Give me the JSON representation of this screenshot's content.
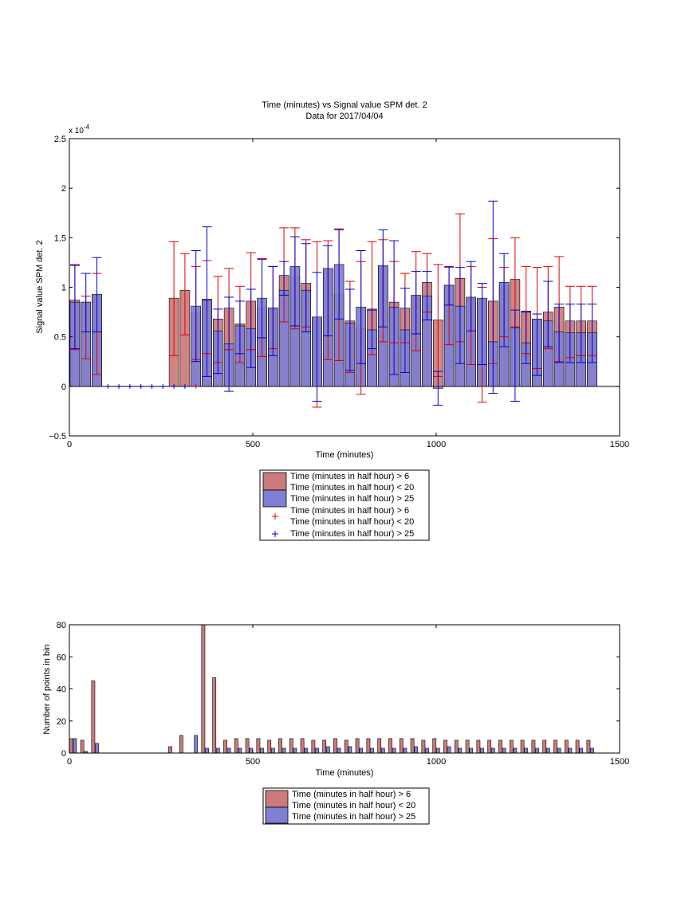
{
  "colors": {
    "red_bar": "#cc7a7a",
    "blue_bar": "#7f7fd4",
    "red_err": "#e00000",
    "blue_err": "#0000d8",
    "axis": "#000000"
  },
  "chart_data": [
    {
      "type": "bar",
      "title": "Time (minutes) vs Signal value SPM det. 2",
      "subtitle": "Data for 2017/04/04",
      "xlabel": "Time (minutes)",
      "ylabel": "Signal value SPM det. 2",
      "exponent_label": "x 10",
      "exponent_power": "-4",
      "xlim": [
        0,
        1500
      ],
      "ylim": [
        -0.5,
        2.5
      ],
      "xticks": [
        "0",
        "500",
        "1000",
        "1500"
      ],
      "yticks": [
        "−0.5",
        "0",
        "0.5",
        "1",
        "1.5",
        "2",
        "2.5"
      ],
      "legend": {
        "position": "below",
        "entries": [
          "Time (minutes in half hour) > 6",
          "Time (minutes in half hour) < 20",
          "Time (minutes in half hour) > 25",
          "Time (minutes in half hour) > 6",
          "Time (minutes in half hour) < 20",
          "Time (minutes in half hour) > 25"
        ]
      },
      "series": [
        {
          "name": "Time (minutes in half hour) > 6 / Time (minutes in half hour) < 20",
          "color": "#cc7a7a",
          "x": [
            15,
            45,
            75,
            105,
            135,
            165,
            195,
            225,
            255,
            285,
            315,
            345,
            375,
            405,
            435,
            465,
            495,
            525,
            555,
            585,
            615,
            645,
            675,
            705,
            735,
            765,
            795,
            825,
            855,
            885,
            915,
            945,
            975,
            1005,
            1035,
            1065,
            1095,
            1125,
            1155,
            1185,
            1215,
            1245,
            1275,
            1305,
            1335,
            1365,
            1395,
            1425
          ],
          "values": [
            0.87,
            0.85,
            0.92,
            0,
            0,
            0,
            0,
            0,
            0,
            0.89,
            0.97,
            0.74,
            0.88,
            0.68,
            0.79,
            0.63,
            0.86,
            0.79,
            0.79,
            1.12,
            1.11,
            1.04,
            0.7,
            1.18,
            0.93,
            0.66,
            0.59,
            0.78,
            1.21,
            0.85,
            0.79,
            0.91,
            1.05,
            0.67,
            1.02,
            1.09,
            0.89,
            0.88,
            0.86,
            1.02,
            1.08,
            0.76,
            0.68,
            0.75,
            0.8,
            0.66,
            0.66,
            0.66
          ],
          "err_low": [
            0.37,
            0.28,
            0.12,
            0,
            0,
            0,
            0,
            0,
            0,
            0.31,
            0.52,
            0.27,
            0.33,
            0.24,
            0.37,
            0.24,
            0.37,
            0.3,
            0.38,
            0.65,
            0.58,
            0.6,
            -0.21,
            0.27,
            0.26,
            0.14,
            -0.08,
            0.32,
            0.45,
            0.44,
            0.44,
            0.36,
            0.75,
            0.1,
            0.42,
            0.45,
            0.22,
            -0.16,
            0.23,
            0.5,
            0.6,
            0.33,
            0.18,
            0.38,
            0.25,
            0.29,
            0.31,
            0.31
          ],
          "err_high": [
            1.23,
            0.91,
            1.14,
            0,
            0,
            0,
            0,
            0,
            0,
            1.46,
            1.34,
            1.21,
            1.27,
            1.11,
            1.19,
            1.01,
            1.35,
            1.29,
            1.21,
            1.6,
            1.6,
            1.48,
            1.46,
            1.47,
            1.59,
            1.06,
            1.26,
            1.46,
            1.48,
            1.26,
            1.14,
            1.36,
            1.34,
            1.23,
            1.2,
            1.74,
            1.21,
            1.0,
            1.49,
            1.2,
            1.5,
            1.21,
            1.2,
            1.21,
            1.31,
            1.01,
            1.01,
            1.01
          ]
        },
        {
          "name": "Time (minutes in half hour) > 25",
          "color": "#7f7fd4",
          "x": [
            15,
            45,
            75,
            105,
            135,
            165,
            195,
            225,
            255,
            285,
            315,
            345,
            375,
            405,
            435,
            465,
            495,
            525,
            555,
            585,
            615,
            645,
            675,
            705,
            735,
            765,
            795,
            825,
            855,
            885,
            915,
            945,
            975,
            1005,
            1035,
            1065,
            1095,
            1125,
            1155,
            1185,
            1215,
            1245,
            1275,
            1305,
            1335,
            1365,
            1395,
            1425
          ],
          "values": [
            0.85,
            0.85,
            0.93,
            0,
            0,
            0,
            0,
            0,
            0,
            0,
            0,
            0.81,
            0.87,
            0.56,
            0.43,
            0.61,
            0.58,
            0.89,
            0.79,
            0.97,
            1.21,
            0.97,
            0.7,
            1.19,
            1.23,
            0.64,
            0.8,
            0.57,
            1.22,
            0.8,
            0.57,
            0.92,
            0.91,
            -0.02,
            1.02,
            0.81,
            0.9,
            0.89,
            0.45,
            1.05,
            0.59,
            0.44,
            0.68,
            0.66,
            0.55,
            0.54,
            0.54,
            0.54
          ],
          "err_low": [
            0.38,
            0.55,
            0.55,
            0,
            0,
            0,
            0,
            0,
            0,
            0,
            0,
            0.25,
            0.1,
            0.13,
            -0.05,
            0.33,
            0.19,
            0.49,
            0.31,
            0.92,
            0.61,
            0.55,
            -0.15,
            0.51,
            0.68,
            0.16,
            0.23,
            0.38,
            0.6,
            0.12,
            0.14,
            0.53,
            0.67,
            -0.19,
            0.82,
            0.23,
            0.56,
            0.22,
            -0.07,
            0.4,
            -0.15,
            0.23,
            0.11,
            0.4,
            0.24,
            0.24,
            0.24,
            0.24
          ],
          "err_high": [
            1.22,
            1.14,
            1.3,
            0,
            0,
            0,
            0,
            0,
            0,
            0,
            0,
            1.37,
            1.61,
            0.78,
            0.9,
            0.86,
            0.98,
            1.28,
            1.21,
            1.26,
            1.51,
            1.44,
            1.15,
            1.42,
            1.58,
            0.98,
            1.37,
            0.77,
            1.58,
            1.47,
            0.99,
            1.16,
            1.16,
            0.15,
            1.21,
            1.2,
            1.26,
            1.04,
            1.87,
            1.34,
            0.77,
            0.75,
            0.73,
            1.06,
            0.83,
            0.83,
            0.83,
            0.83
          ]
        },
        {
          "name": "Time (minutes in half hour) > 6 / Time (minutes in half hour) < 20",
          "type": "markers",
          "marker": "+",
          "color": "#e00000",
          "x": [
            345
          ],
          "values": [
            0
          ]
        },
        {
          "name": "Time (minutes in half hour) > 25",
          "type": "markers",
          "marker": "+",
          "color": "#0000d8",
          "x": [
            105,
            135,
            165,
            195,
            225,
            255,
            285,
            315
          ],
          "values": [
            0,
            0,
            0,
            0,
            0,
            0,
            0,
            0
          ]
        }
      ]
    },
    {
      "type": "bar",
      "title": "",
      "xlabel": "Time (minutes)",
      "ylabel": "Number of points in bin",
      "xlim": [
        0,
        1500
      ],
      "ylim": [
        0,
        80
      ],
      "xticks": [
        "0",
        "500",
        "1000",
        "1500"
      ],
      "yticks": [
        "0",
        "20",
        "40",
        "60",
        "80"
      ],
      "legend": {
        "position": "below",
        "entries": [
          "Time (minutes in half hour) > 6",
          "Time (minutes in half hour) < 20",
          "Time (minutes in half hour) > 25"
        ]
      },
      "series": [
        {
          "name": "Time (minutes in half hour) > 6 / Time (minutes in half hour) < 20",
          "color": "#cc7a7a",
          "x": [
            5,
            35,
            65,
            275,
            305,
            365,
            395,
            425,
            455,
            485,
            515,
            545,
            575,
            605,
            635,
            665,
            695,
            725,
            755,
            785,
            815,
            845,
            875,
            905,
            935,
            965,
            995,
            1025,
            1055,
            1085,
            1115,
            1145,
            1175,
            1205,
            1235,
            1265,
            1295,
            1325,
            1355,
            1385,
            1415
          ],
          "values": [
            9,
            8,
            45,
            4,
            11,
            80,
            47,
            8,
            9,
            9,
            9,
            8,
            9,
            9,
            9,
            8,
            8,
            9,
            8,
            9,
            9,
            9,
            9,
            9,
            9,
            8,
            9,
            8,
            8,
            8,
            8,
            8,
            8,
            8,
            8,
            8,
            8,
            8,
            8,
            8,
            8
          ]
        },
        {
          "name": "Time (minutes in half hour) > 25",
          "color": "#7f7fd4",
          "x": [
            15,
            45,
            75,
            345,
            375,
            405,
            435,
            465,
            495,
            525,
            555,
            585,
            615,
            645,
            675,
            705,
            735,
            765,
            795,
            825,
            855,
            885,
            915,
            945,
            975,
            1005,
            1035,
            1065,
            1095,
            1125,
            1155,
            1185,
            1215,
            1245,
            1275,
            1305,
            1335,
            1365,
            1395,
            1425
          ],
          "values": [
            9,
            1,
            6,
            11,
            3,
            3,
            3,
            3,
            3,
            3,
            3,
            3,
            3,
            3,
            3,
            4,
            3,
            4,
            3,
            3,
            3,
            3,
            3,
            4,
            3,
            3,
            4,
            3,
            3,
            3,
            3,
            3,
            3,
            3,
            3,
            3,
            3,
            3,
            3,
            3
          ]
        }
      ]
    }
  ]
}
